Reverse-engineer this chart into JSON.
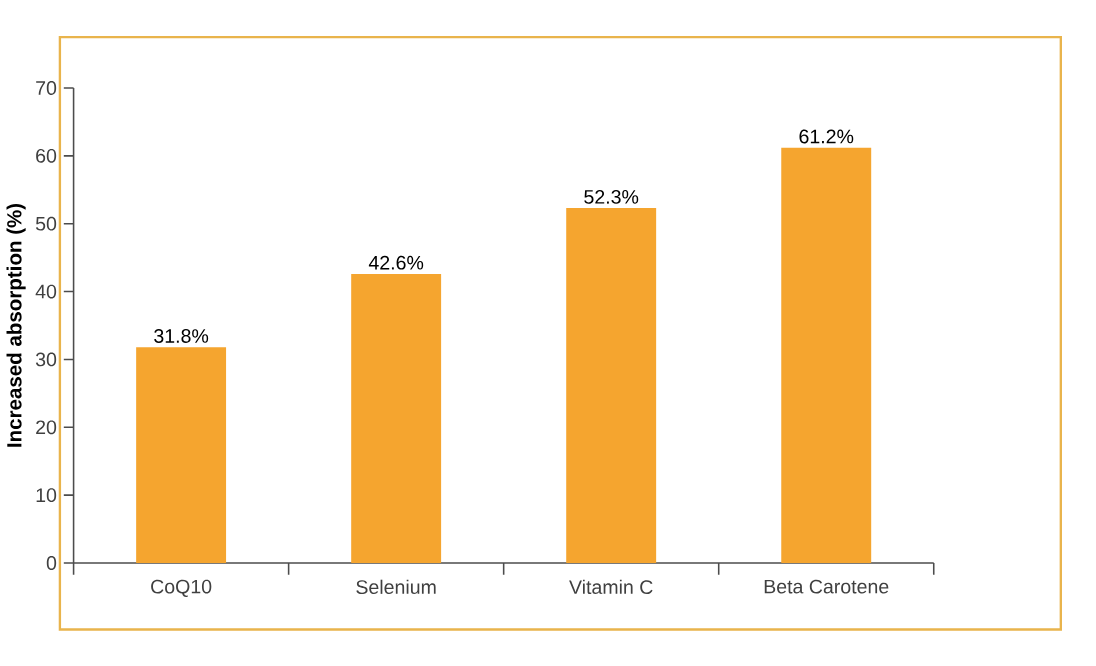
{
  "chart_data": {
    "type": "bar",
    "ylabel": "Increased absorption (%)",
    "categories": [
      "CoQ10",
      "Selenium",
      "Vitamin C",
      "Beta Carotene"
    ],
    "values": [
      31.8,
      42.6,
      52.3,
      61.2
    ],
    "value_labels": [
      "31.8%",
      "42.6%",
      "52.3%",
      "61.2%"
    ],
    "color": "#f5a52f",
    "ylim": [
      0,
      70
    ],
    "yticks": [
      0,
      10,
      20,
      30,
      40,
      50,
      60,
      70
    ]
  }
}
